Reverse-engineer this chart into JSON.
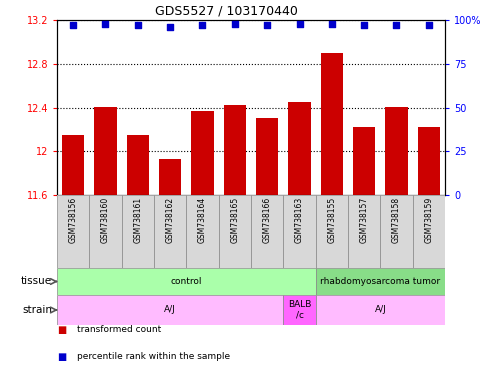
{
  "title": "GDS5527 / 103170440",
  "samples": [
    "GSM738156",
    "GSM738160",
    "GSM738161",
    "GSM738162",
    "GSM738164",
    "GSM738165",
    "GSM738166",
    "GSM738163",
    "GSM738155",
    "GSM738157",
    "GSM738158",
    "GSM738159"
  ],
  "bar_values": [
    12.15,
    12.4,
    12.15,
    11.93,
    12.37,
    12.42,
    12.3,
    12.45,
    12.9,
    12.22,
    12.4,
    12.22
  ],
  "percentile_values": [
    97,
    98,
    97,
    96,
    97,
    98,
    97,
    98,
    98,
    97,
    97,
    97
  ],
  "ylim_left": [
    11.6,
    13.2
  ],
  "ylim_right": [
    0,
    100
  ],
  "yticks_left": [
    11.6,
    12.0,
    12.4,
    12.8,
    13.2
  ],
  "yticks_right": [
    0,
    25,
    50,
    75,
    100
  ],
  "bar_color": "#cc0000",
  "dot_color": "#0000cc",
  "tissue_groups": [
    {
      "label": "control",
      "start": 0,
      "end": 8,
      "color": "#aaffaa"
    },
    {
      "label": "rhabdomyosarcoma tumor",
      "start": 8,
      "end": 12,
      "color": "#88dd88"
    }
  ],
  "strain_groups": [
    {
      "label": "A/J",
      "start": 0,
      "end": 7,
      "color": "#ffbbff"
    },
    {
      "label": "BALB\n/c",
      "start": 7,
      "end": 8,
      "color": "#ff66ff"
    },
    {
      "label": "A/J",
      "start": 8,
      "end": 12,
      "color": "#ffbbff"
    }
  ],
  "tissue_label": "tissue",
  "strain_label": "strain",
  "legend_items": [
    {
      "label": "transformed count",
      "color": "#cc0000"
    },
    {
      "label": "percentile rank within the sample",
      "color": "#0000cc"
    }
  ],
  "sample_bg": "#d8d8d8",
  "sample_edge": "#888888"
}
